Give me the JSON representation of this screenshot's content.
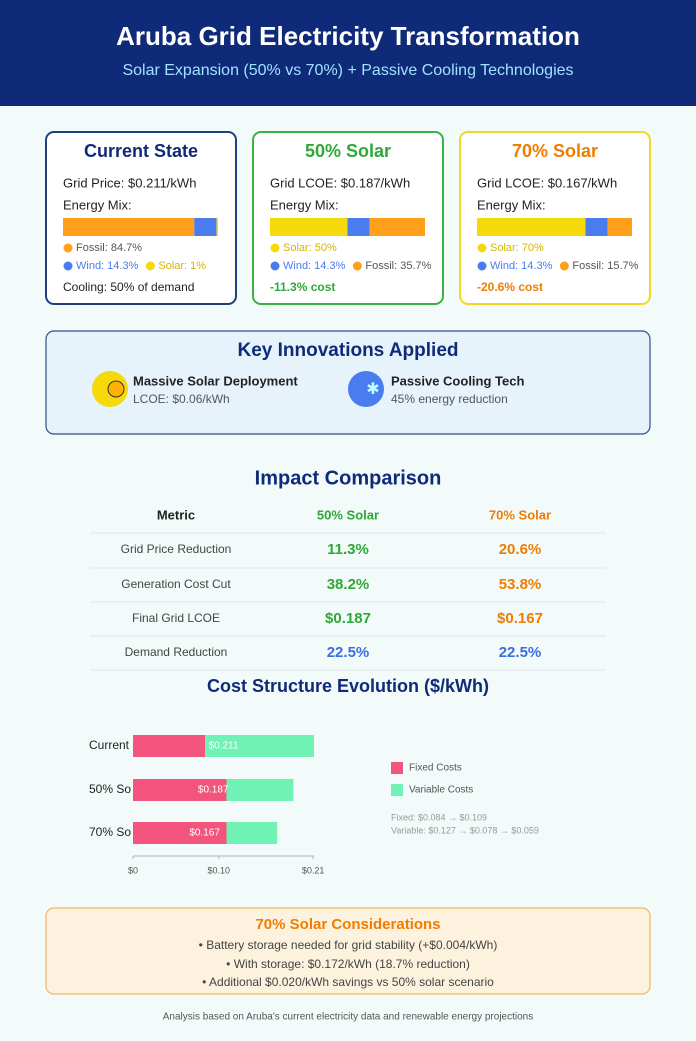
{
  "header": {
    "title": "Aruba Grid Electricity Transformation",
    "subtitle": "Solar Expansion (50% vs 70%) + Passive Cooling Technologies"
  },
  "cards": [
    {
      "title": "Current State",
      "price": "Grid Price: $0.211/kWh",
      "mix_label": "Energy Mix:",
      "mix": [
        {
          "label": "Fossil: 84.7%",
          "value": 84.7,
          "color": "#ff9f1a"
        },
        {
          "label": "Wind: 14.3%",
          "value": 14.3,
          "color": "#4a7cf0"
        },
        {
          "label": "Solar: 1%",
          "value": 1,
          "color": "#f5d90a"
        }
      ],
      "footer": "Cooling: 50% of demand"
    },
    {
      "title": "50% Solar",
      "price": "Grid LCOE: $0.187/kWh",
      "mix_label": "Energy Mix:",
      "mix": [
        {
          "label": "Solar: 50%",
          "value": 50,
          "color": "#f5d90a"
        },
        {
          "label": "Wind: 14.3%",
          "value": 14.3,
          "color": "#4a7cf0"
        },
        {
          "label": "Fossil: 35.7%",
          "value": 35.7,
          "color": "#ff9f1a"
        }
      ],
      "footer": "-11.3% cost"
    },
    {
      "title": "70% Solar",
      "price": "Grid LCOE: $0.167/kWh",
      "mix_label": "Energy Mix:",
      "mix": [
        {
          "label": "Solar: 70%",
          "value": 70,
          "color": "#f5d90a"
        },
        {
          "label": "Wind: 14.3%",
          "value": 14.3,
          "color": "#4a7cf0"
        },
        {
          "label": "Fossil: 15.7%",
          "value": 15.7,
          "color": "#ff9f1a"
        }
      ],
      "footer": "-20.6% cost"
    }
  ],
  "innovations": {
    "title": "Key Innovations Applied",
    "items": [
      {
        "title": "Massive Solar Deployment",
        "detail": "LCOE: $0.06/kWh"
      },
      {
        "title": "Passive Cooling Tech",
        "detail": "45% energy reduction"
      }
    ]
  },
  "impact": {
    "title": "Impact Comparison",
    "columns": [
      "Metric",
      "50% Solar",
      "70% Solar"
    ],
    "rows": [
      [
        "Grid Price Reduction",
        "11.3%",
        "20.6%"
      ],
      [
        "Generation Cost Cut",
        "38.2%",
        "53.8%"
      ],
      [
        "Final Grid LCOE",
        "$0.187",
        "$0.167"
      ],
      [
        "Demand Reduction",
        "22.5%",
        "22.5%"
      ]
    ]
  },
  "chart_data": {
    "type": "bar",
    "orientation": "horizontal",
    "stacked": true,
    "title": "Cost Structure Evolution ($/kWh)",
    "categories": [
      "Current",
      "50% So",
      "70% So"
    ],
    "series": [
      {
        "name": "Fixed Costs",
        "color": "#f2547d",
        "values": [
          0.084,
          0.109,
          0.109
        ]
      },
      {
        "name": "Variable Costs",
        "color": "#6ff2b4",
        "values": [
          0.127,
          0.078,
          0.059
        ]
      }
    ],
    "totals": [
      0.211,
      0.187,
      0.167
    ],
    "value_labels": [
      "$0.211",
      "$0.187",
      "$0.167"
    ],
    "xlim": [
      0,
      0.211
    ],
    "xticks": [
      {
        "value": 0,
        "label": "$0"
      },
      {
        "value": 0.1,
        "label": "$0.10"
      },
      {
        "value": 0.21,
        "label": "$0.21"
      }
    ],
    "notes": [
      "Fixed: $0.084 → $0.109",
      "Variable: $0.127 → $0.078 → $0.059"
    ]
  },
  "considerations": {
    "title": "70% Solar Considerations",
    "items": [
      "• Battery storage needed for grid stability (+$0.004/kWh)",
      "• With storage: $0.172/kWh (18.7% reduction)",
      "• Additional $0.020/kWh savings vs 50% solar scenario"
    ]
  },
  "footer": "Analysis based on Aruba's current electricity data and renewable energy projections"
}
